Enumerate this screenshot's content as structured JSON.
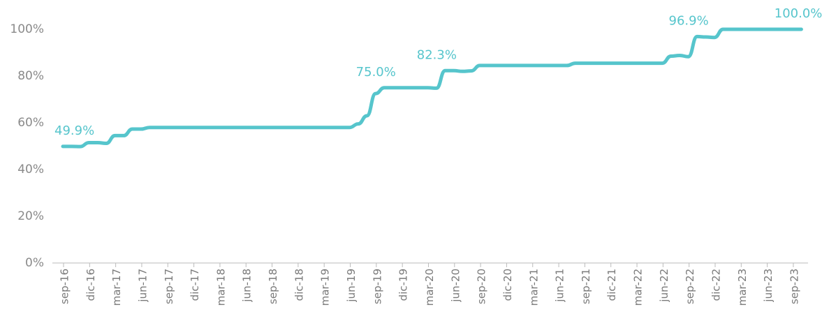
{
  "chart_data": {
    "type": "line",
    "categories": [
      "sep-16",
      null,
      null,
      "dic-16",
      null,
      null,
      "mar-17",
      null,
      null,
      "jun-17",
      null,
      null,
      "sep-17",
      null,
      null,
      "dic-17",
      null,
      null,
      "mar-18",
      null,
      null,
      "jun-18",
      null,
      null,
      "sep-18",
      null,
      null,
      "dic-18",
      null,
      null,
      "mar-19",
      null,
      null,
      "jun-19",
      null,
      null,
      "sep-19",
      null,
      null,
      "dic-19",
      null,
      null,
      "mar-20",
      null,
      null,
      "jun-20",
      null,
      null,
      "sep-20",
      null,
      null,
      "dic-20",
      null,
      null,
      "mar-21",
      null,
      null,
      "jun-21",
      null,
      null,
      "sep-21",
      null,
      null,
      "dic-21",
      null,
      null,
      "mar-22",
      null,
      null,
      "jun-22",
      null,
      null,
      "sep-22",
      null,
      null,
      "dic-22",
      null,
      null,
      "mar-23",
      null,
      null,
      "jun-23",
      null,
      null,
      "sep-23",
      null
    ],
    "series": [
      {
        "color": "#56c5cc",
        "values": [
          49.9,
          49.9,
          49.8,
          51.5,
          51.5,
          51.2,
          54.5,
          54.5,
          57.3,
          57.3,
          58,
          58,
          58,
          58,
          58,
          58,
          58,
          58,
          58,
          58,
          58,
          58,
          58,
          58,
          58,
          58,
          58,
          58,
          58,
          58,
          58,
          58,
          58,
          58,
          59.5,
          63,
          72.5,
          75.0,
          75,
          75,
          75,
          75,
          75,
          74.8,
          82.3,
          82.3,
          82,
          82.2,
          84.5,
          84.5,
          84.5,
          84.5,
          84.5,
          84.5,
          84.5,
          84.5,
          84.5,
          84.5,
          84.5,
          85.5,
          85.5,
          85.5,
          85.5,
          85.5,
          85.5,
          85.5,
          85.5,
          85.5,
          85.5,
          85.5,
          88.5,
          88.8,
          88.3,
          96.9,
          96.7,
          96.5,
          100,
          100,
          100,
          100,
          100,
          100,
          100,
          100,
          100,
          100
        ],
        "value_labels": [
          "49.9%",
          null,
          null,
          null,
          null,
          null,
          null,
          null,
          null,
          null,
          null,
          null,
          null,
          null,
          null,
          null,
          null,
          null,
          null,
          null,
          null,
          null,
          null,
          null,
          null,
          null,
          null,
          null,
          null,
          null,
          null,
          null,
          null,
          null,
          null,
          null,
          null,
          "75.0%",
          null,
          null,
          null,
          null,
          null,
          null,
          "82.3%",
          null,
          null,
          null,
          null,
          null,
          null,
          null,
          null,
          null,
          null,
          null,
          null,
          null,
          null,
          null,
          null,
          null,
          null,
          null,
          null,
          null,
          null,
          null,
          null,
          null,
          null,
          null,
          null,
          "96.9%",
          null,
          null,
          null,
          null,
          null,
          null,
          null,
          null,
          null,
          null,
          null,
          "100.0%"
        ]
      }
    ],
    "ylim": [
      0,
      100
    ],
    "yticks": [
      {
        "value": 0,
        "label": "0%"
      },
      {
        "value": 20,
        "label": "20%"
      },
      {
        "value": 40,
        "label": "40%"
      },
      {
        "value": 60,
        "label": "60%"
      },
      {
        "value": 80,
        "label": "80%"
      },
      {
        "value": 100,
        "label": "100%"
      }
    ],
    "grid": false
  }
}
